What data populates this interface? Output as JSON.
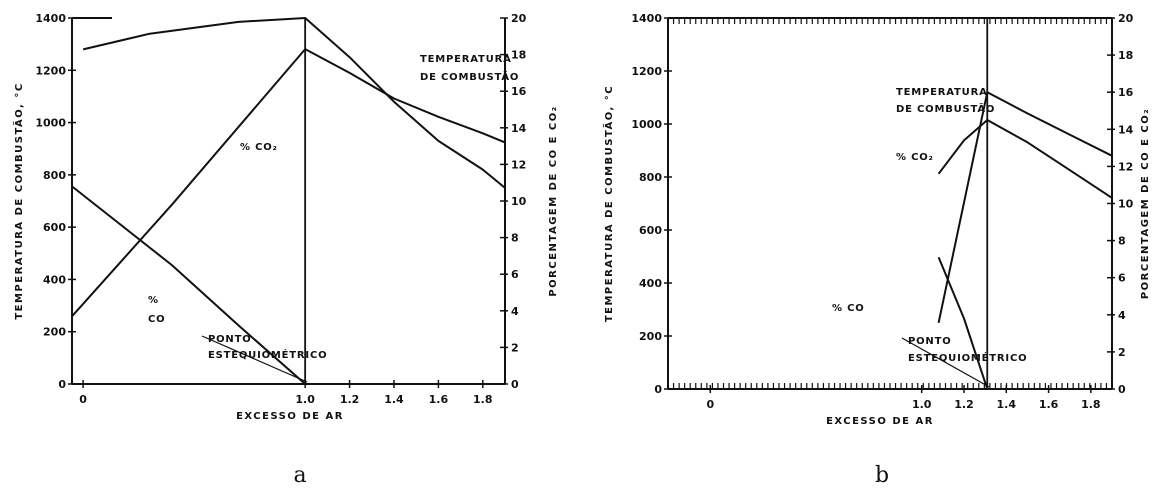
{
  "chart_data": [
    {
      "panel": "a",
      "type": "line",
      "xlabel": "EXCESSO DE AR",
      "ylabel_left": "TEMPERATURA DE COMBUSTÃO, °C",
      "ylabel_right": "PORCENTAGEM DE CO E CO₂",
      "xlim": [
        -0.05,
        1.9
      ],
      "ylim_left": [
        0,
        1400
      ],
      "ylim_right": [
        0,
        20
      ],
      "x_ticks": [
        "0",
        "1.0",
        "1.2",
        "1.4",
        "1.6",
        "1.8"
      ],
      "y_ticks_left": [
        "0",
        "200",
        "400",
        "600",
        "800",
        "1000",
        "1200",
        "1400"
      ],
      "y_ticks_right": [
        "0",
        "2",
        "4",
        "6",
        "8",
        "10",
        "12",
        "14",
        "16",
        "18",
        "20"
      ],
      "series": [
        {
          "axis": "left",
          "points": [
            [
              0,
              1280
            ],
            [
              0.3,
              1340
            ],
            [
              0.7,
              1385
            ],
            [
              1.0,
              1400
            ],
            [
              1.2,
              1250
            ],
            [
              1.4,
              1080
            ],
            [
              1.6,
              930
            ],
            [
              1.8,
              820
            ],
            [
              1.9,
              750
            ]
          ]
        },
        {
          "axis": "right",
          "points": [
            [
              -0.05,
              3.7
            ],
            [
              0.4,
              9.8
            ],
            [
              1.0,
              18.3
            ],
            [
              1.2,
              17.0
            ],
            [
              1.4,
              15.6
            ],
            [
              1.6,
              14.6
            ],
            [
              1.8,
              13.7
            ],
            [
              1.9,
              13.2
            ]
          ]
        },
        {
          "axis": "right",
          "points": [
            [
              -0.05,
              10.8
            ],
            [
              0.4,
              6.5
            ],
            [
              0.7,
              3.2
            ],
            [
              1.0,
              0
            ]
          ]
        }
      ],
      "vertical_lines": [
        1.0
      ],
      "annotations": {
        "temperatura_1": "TEMPERATURA",
        "temperatura_2": "DE COMBUSTÃO",
        "co2": "% CO₂",
        "co_1": "%",
        "co_2": "CO",
        "ponto_1": "PONTO",
        "ponto_2": "ESTEQUIOMÉTRICO"
      },
      "caption": "a"
    },
    {
      "panel": "b",
      "type": "line",
      "xlabel": "EXCESSO DE AR",
      "ylabel_left": "TEMPERATURA DE COMBUSTÃO, °C",
      "ylabel_right": "PORCENTAGEM DE CO E CO₂",
      "xlim": [
        -0.2,
        1.9
      ],
      "ylim_left": [
        0,
        1400
      ],
      "ylim_right": [
        0,
        20
      ],
      "x_ticks": [
        "0",
        "1.0",
        "1.2",
        "1.4",
        "1.6",
        "1.8"
      ],
      "y_ticks_left": [
        "0",
        "200",
        "400",
        "600",
        "800",
        "1000",
        "1200",
        "1400"
      ],
      "y_ticks_right": [
        "0",
        "2",
        "4",
        "6",
        "8",
        "10",
        "12",
        "14",
        "16",
        "18",
        "20"
      ],
      "series": [
        {
          "axis": "left",
          "points": [
            [
              1.08,
              250
            ],
            [
              1.31,
              1120
            ],
            [
              1.5,
              1040
            ],
            [
              1.7,
              960
            ],
            [
              1.9,
              880
            ]
          ]
        },
        {
          "axis": "right",
          "points": [
            [
              1.08,
              11.6
            ],
            [
              1.2,
              13.4
            ],
            [
              1.31,
              14.5
            ],
            [
              1.5,
              13.3
            ],
            [
              1.7,
              11.8
            ],
            [
              1.9,
              10.3
            ]
          ]
        },
        {
          "axis": "right",
          "points": [
            [
              1.08,
              7.1
            ],
            [
              1.2,
              3.8
            ],
            [
              1.31,
              0
            ]
          ]
        }
      ],
      "vertical_lines": [
        1.31
      ],
      "annotations": {
        "temperatura_1": "TEMPERATURA",
        "temperatura_2": "DE COMBUSTÃO",
        "co2": "% CO₂",
        "co": "% CO",
        "ponto_1": "PONTO",
        "ponto_2": "ESTEQUIOMÉTRICO"
      },
      "caption": "b"
    }
  ]
}
